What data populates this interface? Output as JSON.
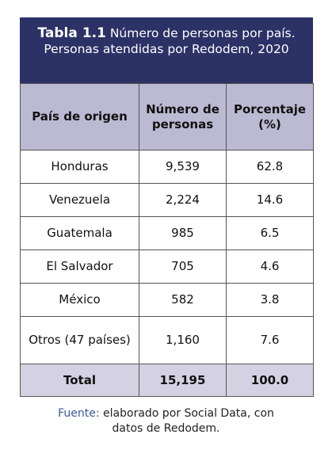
{
  "title": {
    "label": "Tabla 1.1",
    "text": "Número de personas por país. Personas atendidas por Redodem, 2020"
  },
  "table": {
    "header": [
      "País de origen",
      "Número de personas",
      "Porcentaje (%)"
    ],
    "rows": [
      [
        "Honduras",
        "9,539",
        "62.8"
      ],
      [
        "Venezuela",
        "2,224",
        "14.6"
      ],
      [
        "Guatemala",
        "985",
        "6.5"
      ],
      [
        "El Salvador",
        "705",
        "4.6"
      ],
      [
        "México",
        "582",
        "3.8"
      ],
      [
        "Otros (47 países)",
        "1,160",
        "7.6"
      ]
    ],
    "total": [
      "Total",
      "15,195",
      "100.0"
    ]
  },
  "source": {
    "label": "Fuente:",
    "text": "elaborado por Social Data, con datos de Redodem."
  }
}
